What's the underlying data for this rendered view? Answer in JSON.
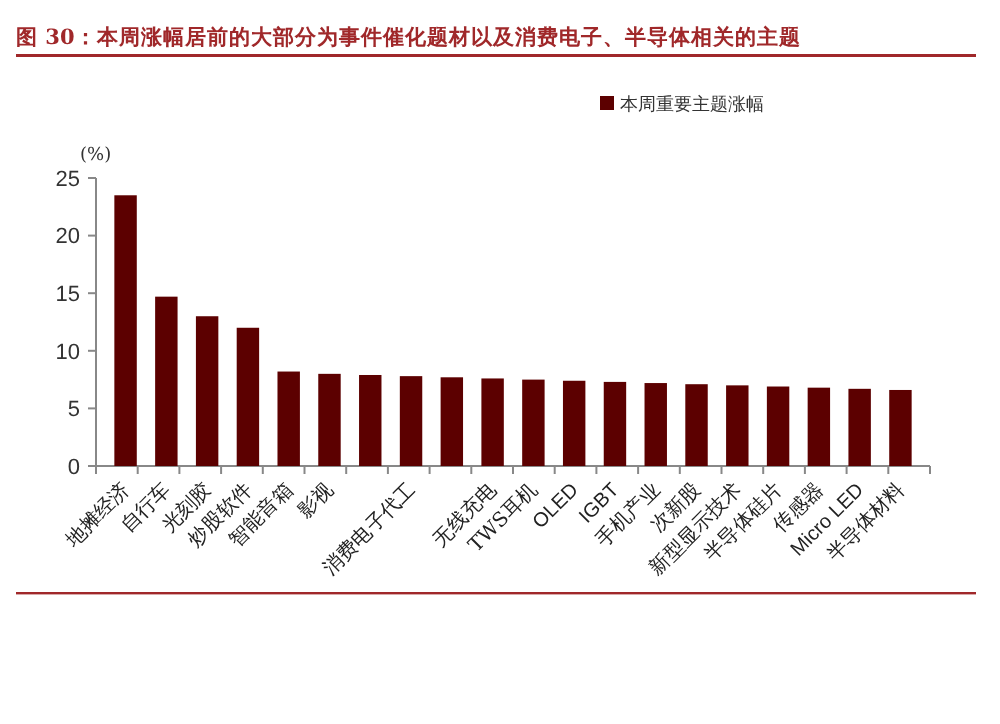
{
  "chart_data": {
    "type": "bar",
    "title": "图 30：本周涨幅居前的大部分为事件催化题材以及消费电子、半导体相关的主题",
    "ylabel": "(%)",
    "categories": [
      "地摊经济",
      "自行车",
      "光刻胶",
      "炒股软件",
      "智能音箱",
      "影视",
      null,
      "消费电子代工",
      null,
      "无线充电",
      "TWS耳机",
      "OLED",
      "IGBT",
      "手机产业",
      "次新股",
      "新型显示技术",
      "半导体硅片",
      "传感器",
      "Micro LED",
      "半导体材料"
    ],
    "series": [
      {
        "name": "本周重要主题涨幅",
        "color": "#5c0000",
        "values": [
          23.5,
          14.7,
          13.0,
          12.0,
          8.2,
          8.0,
          7.9,
          7.8,
          7.7,
          7.6,
          7.5,
          7.4,
          7.3,
          7.2,
          7.1,
          7.0,
          6.9,
          6.8,
          6.7,
          6.6
        ]
      }
    ],
    "ylim": [
      0,
      25
    ],
    "yticks": [
      0,
      5,
      10,
      15,
      20,
      25
    ],
    "legend": "top right"
  }
}
